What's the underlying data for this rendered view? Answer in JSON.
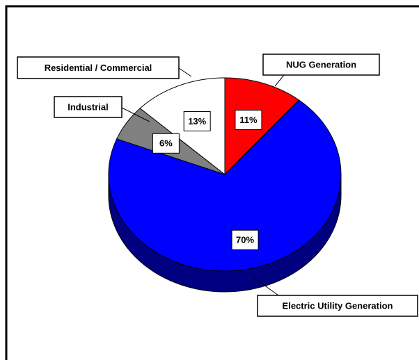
{
  "chart_data": {
    "type": "pie",
    "categories": [
      "NUG Generation",
      "Electric Utility Generation",
      "Industrial",
      "Residential / Commercial"
    ],
    "values": [
      11,
      70,
      6,
      13
    ],
    "value_labels": [
      "11%",
      "70%",
      "6%",
      "13%"
    ],
    "colors": [
      "#ff0000",
      "#0000ff",
      "#808080",
      "#ffffff"
    ],
    "side_colors": [
      "#800000",
      "#000080",
      "#404040",
      "#a0a0a0"
    ]
  }
}
